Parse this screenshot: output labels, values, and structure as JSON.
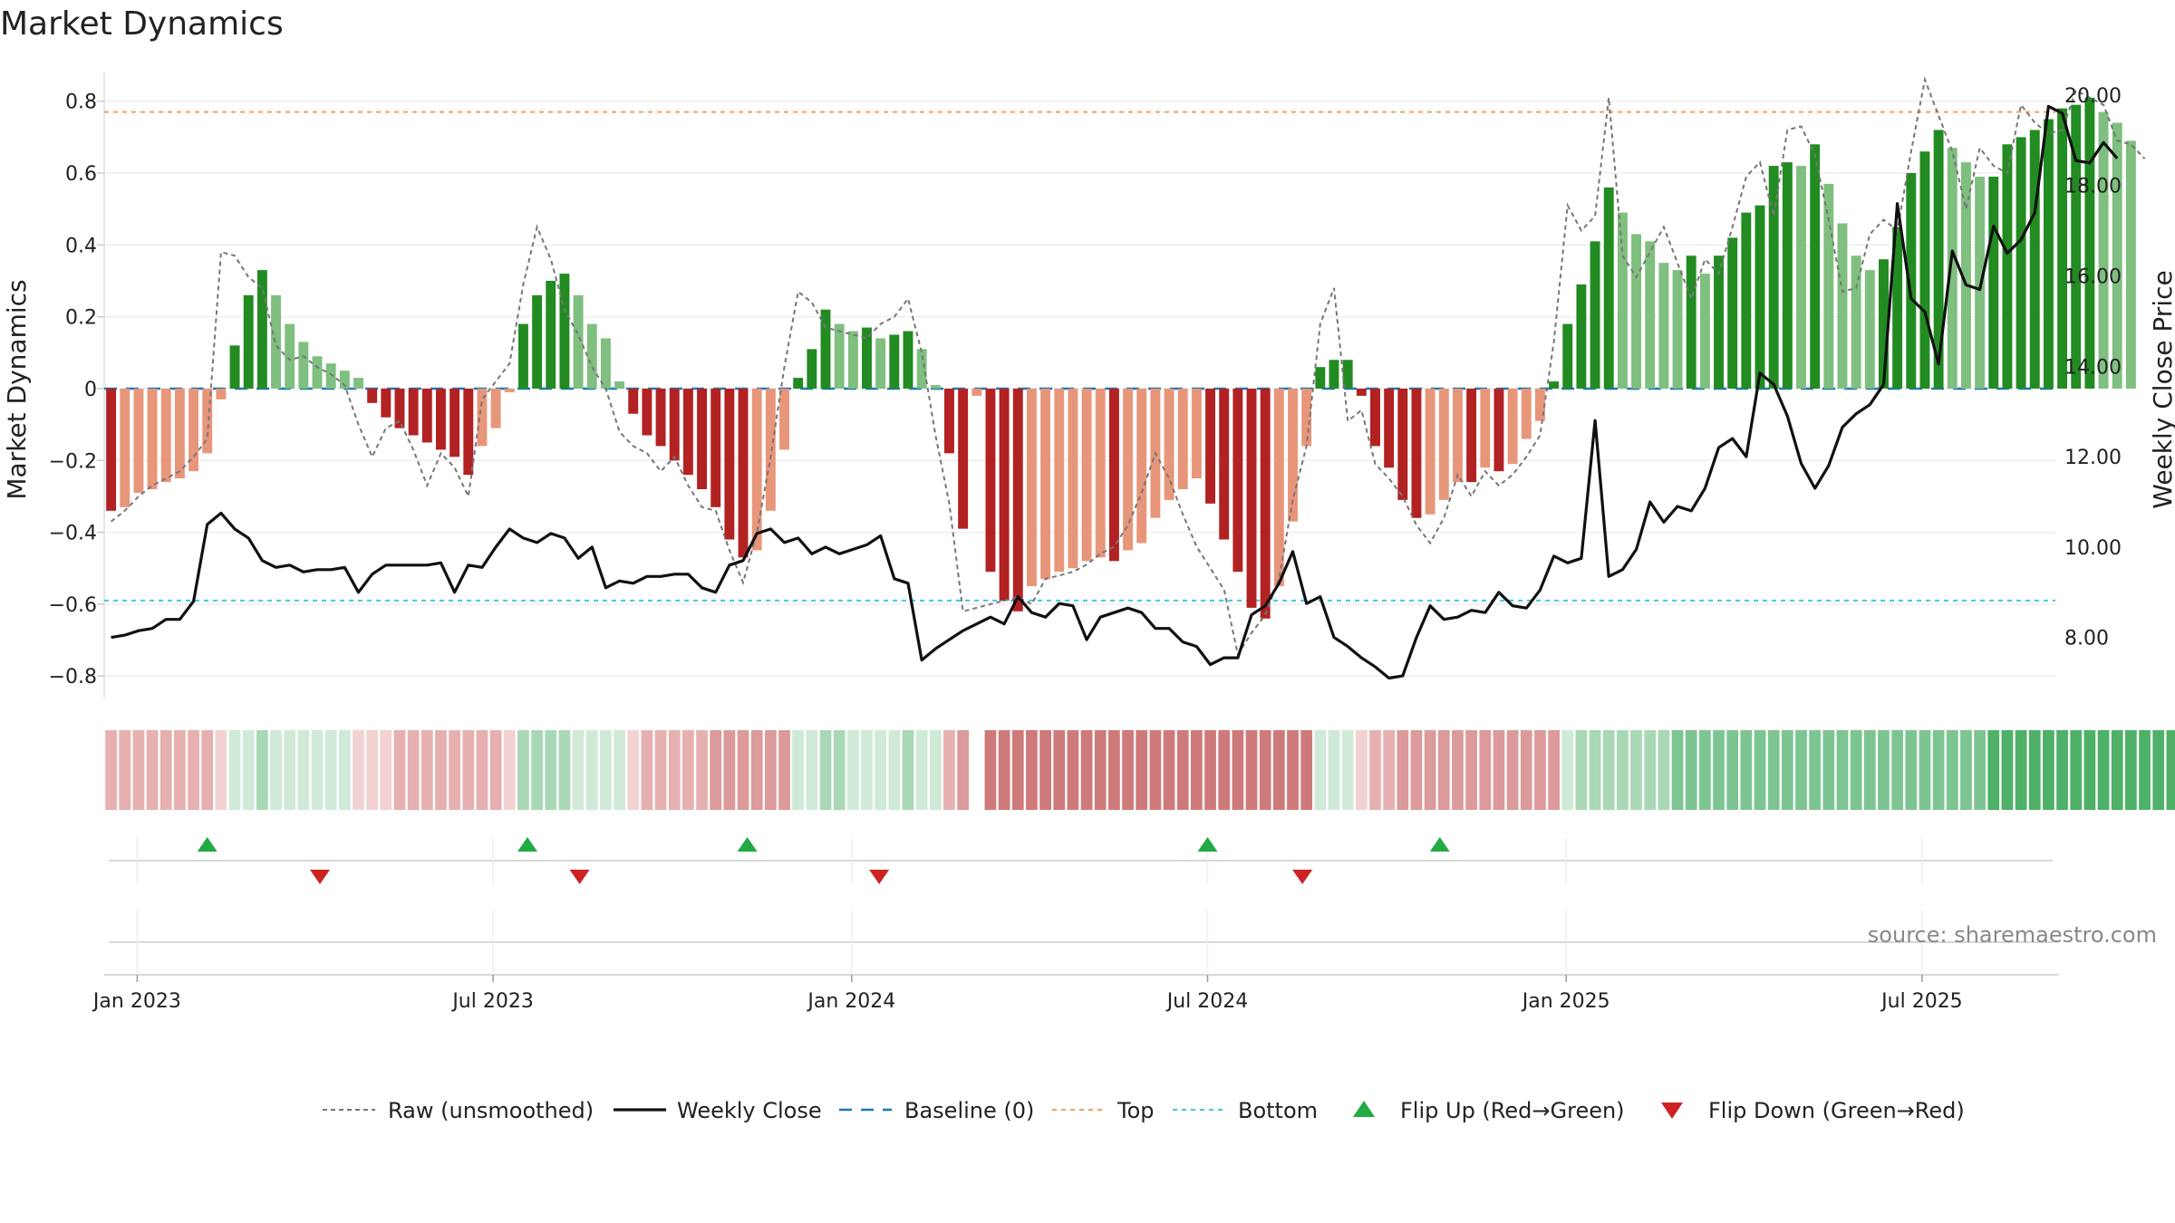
{
  "chart_data": {
    "type": "bar",
    "title": "Market Dynamics",
    "ylabel": "Market Dynamics",
    "y2label": "Weekly Close Price",
    "ylim": [
      -0.86,
      0.88
    ],
    "y2lim": [
      6.67,
      20.5
    ],
    "yticks": [
      "0.8",
      "0.6",
      "0.4",
      "0.2",
      "0",
      "−0.2",
      "−0.4",
      "−0.6",
      "−0.8"
    ],
    "ytick_values": [
      0.8,
      0.6,
      0.4,
      0.2,
      0,
      -0.2,
      -0.4,
      -0.6,
      -0.8
    ],
    "y2ticks": [
      "20.00",
      "18.00",
      "16.00",
      "14.00",
      "12.00",
      "10.00",
      "8.00"
    ],
    "y2tick_values": [
      20,
      18,
      16,
      14,
      12,
      10,
      8
    ],
    "xticks": [
      "Jan 2023",
      "Jul 2023",
      "Jan 2024",
      "Jul 2024",
      "Jan 2025",
      "Jul 2025"
    ],
    "xtick_weeks": [
      2.4,
      28.3,
      54.4,
      80.3,
      106.4,
      132.3
    ],
    "weeks": 142,
    "top_level": 0.77,
    "bottom_level": -0.59,
    "baseline": 0,
    "series": [
      {
        "name": "Market Dynamics (smoothed)",
        "values": [
          -0.34,
          -0.33,
          -0.29,
          -0.28,
          -0.26,
          -0.25,
          -0.23,
          -0.18,
          -0.03,
          0.12,
          0.26,
          0.33,
          0.26,
          0.18,
          0.13,
          0.09,
          0.07,
          0.05,
          0.03,
          -0.04,
          -0.08,
          -0.11,
          -0.13,
          -0.15,
          -0.17,
          -0.19,
          -0.24,
          -0.16,
          -0.11,
          -0.01,
          0.18,
          0.26,
          0.3,
          0.32,
          0.26,
          0.18,
          0.14,
          0.02,
          -0.07,
          -0.13,
          -0.16,
          -0.2,
          -0.24,
          -0.28,
          -0.33,
          -0.42,
          -0.47,
          -0.45,
          -0.34,
          -0.17,
          0.03,
          0.11,
          0.22,
          0.18,
          0.16,
          0.17,
          0.14,
          0.15,
          0.16,
          0.11,
          0.01,
          -0.18,
          -0.39,
          -0.02,
          -0.51,
          -0.59,
          -0.62,
          -0.55,
          -0.53,
          -0.51,
          -0.5,
          -0.48,
          -0.47,
          -0.48,
          -0.45,
          -0.43,
          -0.36,
          -0.31,
          -0.28,
          -0.25,
          -0.32,
          -0.42,
          -0.51,
          -0.61,
          -0.64,
          -0.55,
          -0.37,
          -0.16,
          0.06,
          0.08,
          0.08,
          -0.02,
          -0.16,
          -0.22,
          -0.31,
          -0.36,
          -0.35,
          -0.31,
          -0.26,
          -0.26,
          -0.22,
          -0.23,
          -0.21,
          -0.14,
          -0.09,
          0.02,
          0.18,
          0.29,
          0.41,
          0.56,
          0.49,
          0.43,
          0.41,
          0.35,
          0.33,
          0.37,
          0.32,
          0.37,
          0.42,
          0.49,
          0.51,
          0.62,
          0.63,
          0.62,
          0.68,
          0.57,
          0.46,
          0.37,
          0.33,
          0.36,
          0.45,
          0.6,
          0.66,
          0.72,
          0.67,
          0.63,
          0.59,
          0.59,
          0.68,
          0.7,
          0.72,
          0.75,
          0.78,
          0.79,
          0.81,
          0.77,
          0.74,
          0.69
        ]
      },
      {
        "name": "Raw (unsmoothed)",
        "values": [
          -0.37,
          -0.34,
          -0.3,
          -0.27,
          -0.25,
          -0.23,
          -0.19,
          -0.14,
          0.38,
          0.37,
          0.31,
          0.28,
          0.12,
          0.08,
          0.09,
          0.06,
          0.04,
          0.01,
          -0.1,
          -0.19,
          -0.11,
          -0.09,
          -0.17,
          -0.27,
          -0.18,
          -0.22,
          -0.3,
          -0.03,
          0.02,
          0.07,
          0.29,
          0.45,
          0.36,
          0.22,
          0.15,
          0.06,
          0.0,
          -0.12,
          -0.16,
          -0.18,
          -0.23,
          -0.19,
          -0.27,
          -0.33,
          -0.34,
          -0.45,
          -0.54,
          -0.4,
          -0.19,
          0.06,
          0.27,
          0.24,
          0.17,
          0.16,
          0.15,
          0.14,
          0.18,
          0.2,
          0.25,
          0.1,
          -0.13,
          -0.32,
          -0.62,
          -0.61,
          -0.6,
          -0.59,
          -0.58,
          -0.6,
          -0.53,
          -0.52,
          -0.51,
          -0.49,
          -0.46,
          -0.44,
          -0.38,
          -0.29,
          -0.18,
          -0.25,
          -0.35,
          -0.44,
          -0.5,
          -0.56,
          -0.74,
          -0.68,
          -0.63,
          -0.53,
          -0.31,
          -0.16,
          0.18,
          0.28,
          -0.09,
          -0.06,
          -0.21,
          -0.25,
          -0.3,
          -0.38,
          -0.43,
          -0.36,
          -0.24,
          -0.3,
          -0.23,
          -0.27,
          -0.24,
          -0.19,
          -0.13,
          0.13,
          0.51,
          0.44,
          0.48,
          0.81,
          0.37,
          0.31,
          0.38,
          0.45,
          0.35,
          0.25,
          0.36,
          0.32,
          0.45,
          0.59,
          0.63,
          0.48,
          0.72,
          0.73,
          0.65,
          0.47,
          0.27,
          0.28,
          0.43,
          0.47,
          0.44,
          0.66,
          0.86,
          0.76,
          0.66,
          0.5,
          0.67,
          0.62,
          0.6,
          0.79,
          0.74,
          0.71,
          0.72,
          0.83,
          0.81,
          0.79,
          0.69,
          0.68,
          0.64
        ]
      },
      {
        "name": "Weekly Close",
        "axis": "right",
        "values": [
          8.0,
          8.05,
          8.15,
          8.2,
          8.4,
          8.4,
          8.8,
          10.5,
          10.75,
          10.4,
          10.2,
          9.7,
          9.55,
          9.6,
          9.45,
          9.5,
          9.5,
          9.55,
          9.0,
          9.4,
          9.6,
          9.6,
          9.6,
          9.6,
          9.65,
          9.0,
          9.6,
          9.55,
          10.0,
          10.4,
          10.2,
          10.1,
          10.3,
          10.2,
          9.75,
          10.0,
          9.1,
          9.25,
          9.2,
          9.35,
          9.35,
          9.4,
          9.4,
          9.1,
          9.0,
          9.6,
          9.7,
          10.3,
          10.4,
          10.1,
          10.2,
          9.85,
          10.0,
          9.85,
          9.95,
          10.05,
          10.25,
          9.3,
          9.2,
          7.5,
          7.75,
          7.95,
          8.15,
          8.3,
          8.45,
          8.3,
          8.9,
          8.55,
          8.45,
          8.75,
          8.7,
          7.95,
          8.45,
          8.55,
          8.65,
          8.55,
          8.2,
          8.2,
          7.9,
          7.8,
          7.4,
          7.55,
          7.55,
          8.5,
          8.7,
          9.2,
          9.9,
          8.75,
          8.9,
          8.0,
          7.8,
          7.55,
          7.35,
          7.1,
          7.15,
          8.0,
          8.7,
          8.4,
          8.45,
          8.6,
          8.55,
          9.0,
          8.7,
          8.65,
          9.05,
          9.8,
          9.65,
          9.75,
          12.8,
          9.35,
          9.5,
          9.95,
          11.0,
          10.55,
          10.9,
          10.8,
          11.3,
          12.2,
          12.4,
          12.0,
          13.85,
          13.6,
          12.9,
          11.85,
          11.3,
          11.8,
          12.65,
          12.95,
          13.15,
          13.6,
          17.6,
          15.5,
          15.2,
          14.05,
          16.55,
          15.8,
          15.7,
          17.1,
          16.5,
          16.8,
          17.4,
          19.75,
          19.6,
          18.55,
          18.5,
          18.95,
          18.6
        ]
      }
    ],
    "strip_levels": [
      -2,
      -2,
      -2,
      -2,
      -2,
      -2,
      -2,
      -2,
      -1,
      1,
      1,
      2,
      1,
      1,
      1,
      1,
      1,
      1,
      -1,
      -1,
      -1,
      -2,
      -2,
      -2,
      -2,
      -2,
      -2,
      -2,
      -2,
      -1,
      2,
      2,
      2,
      2,
      1,
      1,
      1,
      1,
      -1,
      -2,
      -2,
      -2,
      -2,
      -2,
      -3,
      -3,
      -3,
      -3,
      -3,
      -3,
      1,
      1,
      2,
      2,
      1,
      1,
      1,
      1,
      2,
      1,
      1,
      -2,
      -3,
      -3,
      -4,
      -4,
      -4,
      -4,
      -4,
      -4,
      -4,
      -4,
      -4,
      -4,
      -4,
      -4,
      -4,
      -4,
      -4,
      -4,
      -4,
      -4,
      -4,
      -4,
      -4,
      -4,
      -4,
      -4,
      1,
      1,
      1,
      -1,
      -2,
      -2,
      -3,
      -3,
      -3,
      -3,
      -3,
      -3,
      -3,
      -3,
      -3,
      -3,
      -3,
      -3,
      1,
      2,
      2,
      2,
      2,
      2,
      2,
      2,
      3,
      3,
      3,
      3,
      3,
      3,
      3,
      3,
      3,
      3,
      3,
      3,
      3,
      3,
      3,
      3,
      3,
      3,
      3,
      3,
      3,
      3,
      3,
      4,
      4,
      4,
      4,
      4,
      4,
      4,
      4,
      4,
      4,
      4,
      4,
      4,
      4,
      4
    ],
    "strip_gap_week": 63,
    "flip_up_weeks": [
      7.5,
      30.8,
      46.8,
      80.3,
      97.2
    ],
    "flip_down_weeks": [
      15.7,
      34.6,
      56.4,
      87.2
    ],
    "legend": [
      {
        "label": "Raw (unsmoothed)",
        "style": "dashed-gray"
      },
      {
        "label": "Weekly Close",
        "style": "solid-black"
      },
      {
        "label": "Baseline (0)",
        "style": "dashed-blue"
      },
      {
        "label": "Top",
        "style": "dotted-orange"
      },
      {
        "label": "Bottom",
        "style": "dotted-cyan"
      },
      {
        "label": "Flip Up (Red→Green)",
        "style": "triangle-up-green"
      },
      {
        "label": "Flip Down (Green→Red)",
        "style": "triangle-down-red"
      }
    ],
    "source": "source: sharemaestro.com",
    "legend_position": "bottom-center"
  },
  "colors": {
    "green_strong": "#228b22",
    "green_light": "#7fbf7f",
    "red_strong": "#b22222",
    "red_light": "#e8967a",
    "raw_line": "#777777",
    "close_line": "#111111",
    "baseline": "#1f77b4",
    "top": "#f0a060",
    "bottom": "#40c8e0",
    "flip_up": "#22aa44",
    "flip_down": "#cc2222",
    "grid": "#eeeeee"
  }
}
